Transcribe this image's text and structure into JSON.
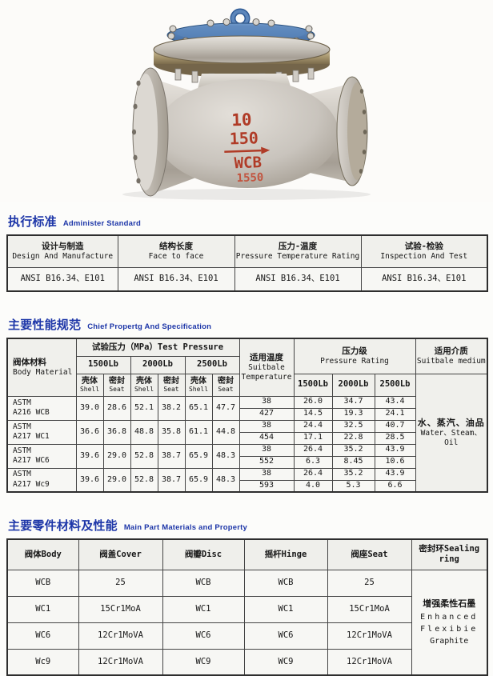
{
  "valve_photo": {
    "description": "swing check valve photo",
    "markings": [
      "10",
      "150",
      "WCB",
      "1550"
    ],
    "colors": {
      "body_metal": "#c9c4bd",
      "flange_tan": "#a8976f",
      "cover_blue": "#4678b2",
      "marking_red": "#b03b27"
    }
  },
  "standards_section": {
    "title_zh": "执行标准",
    "title_en": "Administer Standard",
    "columns": [
      {
        "zh": "设计与制造",
        "en": "Design And Manufacture",
        "value": "ANSI B16.34、E101"
      },
      {
        "zh": "结构长度",
        "en": "Face to face",
        "value": "ANSI B16.34、E101"
      },
      {
        "zh": "压力-温度",
        "en": "Pressure Temperature Rating",
        "value": "ANSI B16.34、E101"
      },
      {
        "zh": "试验-检验",
        "en": "Inspection And Test",
        "value": "ANSI B16.34、E101"
      }
    ]
  },
  "spec_section": {
    "title_zh": "主要性能规范",
    "title_en": "Chief Propertg And Specification",
    "header": {
      "body_material_zh": "阀体材料",
      "body_material_en": "Body Material",
      "test_pressure": "试验压力（MPa）Test Pressure",
      "pressure_classes": [
        "1500Lb",
        "2000Lb",
        "2500Lb"
      ],
      "shell_zh": "壳体",
      "shell_en": "Shell",
      "seat_zh": "密封",
      "seat_en": "Seat",
      "temperature_zh": "适用温度",
      "temperature_en1": "Suitbale",
      "temperature_en2": "Temperature",
      "rating_zh": "压力级",
      "rating_en": "Pressure Rating",
      "rating_classes": [
        "1500Lb",
        "2000Lb",
        "2500Lb"
      ],
      "medium_zh": "适用介质",
      "medium_en": "Suitbale medium"
    },
    "rows": [
      {
        "material": [
          "ASTM",
          "A216 WCB"
        ],
        "test_pressure": [
          "39.0",
          "28.6",
          "52.1",
          "38.2",
          "65.1",
          "47.7"
        ],
        "temps": [
          {
            "t": "38",
            "ratings": [
              "26.0",
              "34.7",
              "43.4"
            ]
          },
          {
            "t": "427",
            "ratings": [
              "14.5",
              "19.3",
              "24.1"
            ]
          }
        ]
      },
      {
        "material": [
          "ASTM",
          "A217 WC1"
        ],
        "test_pressure": [
          "36.6",
          "36.8",
          "48.8",
          "35.8",
          "61.1",
          "44.8"
        ],
        "temps": [
          {
            "t": "38",
            "ratings": [
              "24.4",
              "32.5",
              "40.7"
            ]
          },
          {
            "t": "454",
            "ratings": [
              "17.1",
              "22.8",
              "28.5"
            ]
          }
        ]
      },
      {
        "material": [
          "ASTM",
          "A217 WC6"
        ],
        "test_pressure": [
          "39.6",
          "29.0",
          "52.8",
          "38.7",
          "65.9",
          "48.3"
        ],
        "temps": [
          {
            "t": "38",
            "ratings": [
              "26.4",
              "35.2",
              "43.9"
            ]
          },
          {
            "t": "552",
            "ratings": [
              "6.3",
              "8.45",
              "10.6"
            ]
          }
        ]
      },
      {
        "material": [
          "ASTM",
          "A217 Wc9"
        ],
        "test_pressure": [
          "39.6",
          "29.0",
          "52.8",
          "38.7",
          "65.9",
          "48.3"
        ],
        "temps": [
          {
            "t": "38",
            "ratings": [
              "26.4",
              "35.2",
              "43.9"
            ]
          },
          {
            "t": "593",
            "ratings": [
              "4.0",
              "5.3",
              "6.6"
            ]
          }
        ]
      }
    ],
    "medium_zh": "水、蒸汽、油品",
    "medium_en": "Water、Steam、Oil"
  },
  "materials_section": {
    "title_zh": "主要零件材料及性能",
    "title_en": "Main Part Materials and Property",
    "columns": [
      "阀体Body",
      "阀盖Cover",
      "阀瓣Disc",
      "摇杆Hinge",
      "阀座Seat",
      "密封环Sealing ring"
    ],
    "rows": [
      [
        "WCB",
        "25",
        "WCB",
        "WCB",
        "25"
      ],
      [
        "WC1",
        "15Cr1MoA",
        "WC1",
        "WC1",
        "15Cr1MoA"
      ],
      [
        "WC6",
        "12Cr1MoVA",
        "WC6",
        "WC6",
        "12Cr1MoVA"
      ],
      [
        "Wc9",
        "12Cr1MoVA",
        "WC9",
        "WC9",
        "12Cr1MoVA"
      ]
    ],
    "sealing_ring": [
      "增强柔性石墨",
      "Enhanced",
      "Flexibie",
      "Graphite"
    ]
  }
}
